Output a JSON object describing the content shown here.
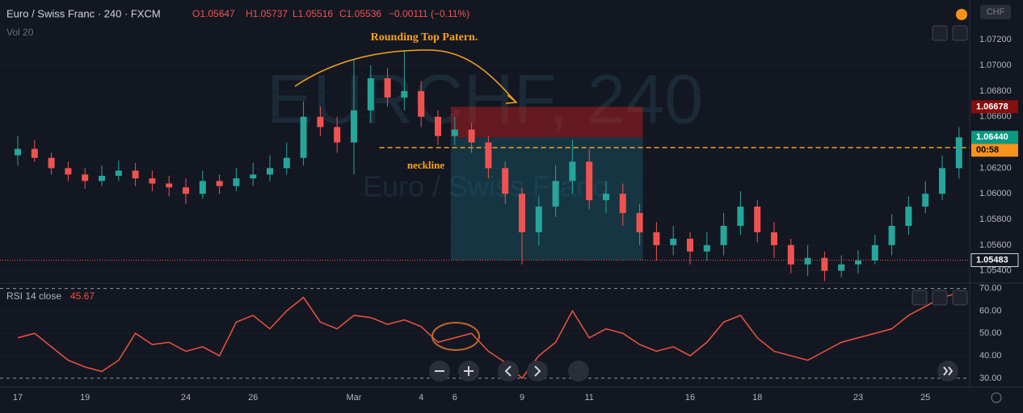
{
  "chart_data": {
    "type": "candlestick",
    "title": "Euro / Swiss Franc · 240 · FXCM",
    "header": [
      "O1.05647",
      "H1.05737",
      "L1.05516",
      "C1.05536",
      "−0.00111 (−0.11%)"
    ],
    "volume_label": "Vol 20",
    "currency": "CHF",
    "watermark": [
      "EURCHF, 240",
      "Euro / Swiss Franc"
    ],
    "annotations": [
      "Rounding Top Patern.",
      "neckline"
    ],
    "neckline": 1.0636,
    "up_color": "#26a69a",
    "down_color": "#ef5350",
    "categories": [
      "17",
      null,
      null,
      null,
      "19",
      null,
      null,
      null,
      null,
      null,
      "24",
      null,
      null,
      null,
      "26",
      null,
      null,
      null,
      null,
      null,
      "Mar",
      null,
      null,
      null,
      "4",
      null,
      "6",
      null,
      null,
      null,
      "9",
      null,
      null,
      null,
      "11",
      null,
      null,
      null,
      null,
      null,
      "16",
      null,
      null,
      null,
      "18",
      null,
      null,
      null,
      null,
      null,
      "23",
      null,
      null,
      null,
      "25",
      null,
      null
    ],
    "close": [
      1.0635,
      1.0628,
      1.062,
      1.0615,
      1.061,
      1.0614,
      1.0618,
      1.0612,
      1.0608,
      1.0605,
      1.06,
      1.061,
      1.0606,
      1.0612,
      1.0615,
      1.062,
      1.0628,
      1.066,
      1.0652,
      1.064,
      1.0665,
      1.069,
      1.0675,
      1.068,
      1.066,
      1.0645,
      1.065,
      1.064,
      1.062,
      1.06,
      1.057,
      1.059,
      1.061,
      1.0625,
      1.0595,
      1.06,
      1.0585,
      1.057,
      1.056,
      1.0565,
      1.0555,
      1.056,
      1.0575,
      1.059,
      1.057,
      1.056,
      1.0545,
      1.055,
      1.054,
      1.0545,
      1.0548,
      1.056,
      1.0575,
      1.059,
      1.06,
      1.062,
      1.0644
    ],
    "open": [
      1.063,
      1.0635,
      1.0628,
      1.062,
      1.0615,
      1.061,
      1.0614,
      1.0618,
      1.0612,
      1.0608,
      1.0605,
      1.06,
      1.061,
      1.0606,
      1.0612,
      1.0615,
      1.062,
      1.0628,
      1.066,
      1.0652,
      1.064,
      1.0665,
      1.069,
      1.0675,
      1.068,
      1.066,
      1.0645,
      1.065,
      1.064,
      1.062,
      1.06,
      1.057,
      1.059,
      1.061,
      1.0625,
      1.0595,
      1.06,
      1.0585,
      1.057,
      1.056,
      1.0565,
      1.0555,
      1.056,
      1.0575,
      1.059,
      1.057,
      1.056,
      1.0545,
      1.055,
      1.054,
      1.0545,
      1.0548,
      1.056,
      1.0575,
      1.059,
      1.06,
      1.062
    ],
    "high": [
      1.0645,
      1.0642,
      1.0632,
      1.0625,
      1.062,
      1.0622,
      1.0626,
      1.0624,
      1.0618,
      1.0614,
      1.0612,
      1.0618,
      1.0615,
      1.062,
      1.0624,
      1.063,
      1.064,
      1.0672,
      1.0668,
      1.066,
      1.0705,
      1.07,
      1.0698,
      1.0712,
      1.0688,
      1.0665,
      1.066,
      1.0655,
      1.0645,
      1.0625,
      1.0605,
      1.0598,
      1.0622,
      1.0642,
      1.0635,
      1.061,
      1.0608,
      1.0592,
      1.0578,
      1.0575,
      1.057,
      1.057,
      1.0585,
      1.0602,
      1.0595,
      1.0578,
      1.0565,
      1.056,
      1.0555,
      1.0552,
      1.0556,
      1.0568,
      1.0584,
      1.0598,
      1.061,
      1.063,
      1.0652
    ],
    "low": [
      1.0622,
      1.0625,
      1.0615,
      1.061,
      1.0604,
      1.0606,
      1.061,
      1.0606,
      1.0602,
      1.0598,
      1.0592,
      1.0596,
      1.06,
      1.0602,
      1.0606,
      1.061,
      1.0615,
      1.0622,
      1.0645,
      1.0632,
      1.0615,
      1.0655,
      1.0668,
      1.0665,
      1.0652,
      1.0638,
      1.0638,
      1.0632,
      1.0612,
      1.0592,
      1.0545,
      1.056,
      1.0582,
      1.06,
      1.0588,
      1.0585,
      1.0575,
      1.056,
      1.0548,
      1.0552,
      1.0545,
      1.0548,
      1.0552,
      1.0568,
      1.0562,
      1.055,
      1.0538,
      1.0536,
      1.0532,
      1.0535,
      1.0538,
      1.0545,
      1.0552,
      1.0568,
      1.0585,
      1.0595,
      1.0612
    ],
    "ylim": [
      1.0531,
      1.0751
    ],
    "yticks": [
      {
        "value": 1.054,
        "label": "1.05400"
      },
      {
        "value": 1.056,
        "label": "1.05600"
      },
      {
        "value": 1.058,
        "label": "1.05800"
      },
      {
        "value": 1.06,
        "label": "1.06000"
      },
      {
        "value": 1.062,
        "label": "1.06200"
      },
      {
        "value": 1.066,
        "label": "1.06600"
      },
      {
        "value": 1.068,
        "label": "1.06800"
      },
      {
        "value": 1.07,
        "label": "1.07000"
      },
      {
        "value": 1.072,
        "label": "1.07200"
      }
    ],
    "price_labels": [
      {
        "value": 1.06678,
        "label": "1.06678",
        "color": "#880e0e"
      },
      {
        "value": 1.0644,
        "label": "1.06440",
        "color": "#089981"
      },
      {
        "value": 1.05483,
        "label": "1.05483",
        "color": "#131722"
      }
    ],
    "countdown": "00:58",
    "rsi": {
      "title": "RSI 14 close",
      "current": "45.67",
      "color": "#f0533f",
      "values": [
        48,
        50,
        44,
        38,
        35,
        33,
        38,
        50,
        45,
        46,
        42,
        44,
        40,
        55,
        58,
        52,
        60,
        66,
        55,
        52,
        58,
        57,
        54,
        56,
        53,
        46,
        48,
        50,
        42,
        37,
        30,
        40,
        46,
        60,
        48,
        52,
        50,
        45,
        42,
        44,
        40,
        46,
        55,
        58,
        48,
        42,
        40,
        38,
        42,
        46,
        48,
        50,
        52,
        58,
        62,
        66,
        68
      ],
      "ylim": [
        26,
        72
      ],
      "yticks": [
        {
          "value": 30,
          "label": "30.00"
        },
        {
          "value": 40,
          "label": "40.00"
        },
        {
          "value": 50,
          "label": "50.00"
        },
        {
          "value": 60,
          "label": "60.00"
        },
        {
          "value": 70,
          "label": "70.00"
        }
      ]
    }
  }
}
